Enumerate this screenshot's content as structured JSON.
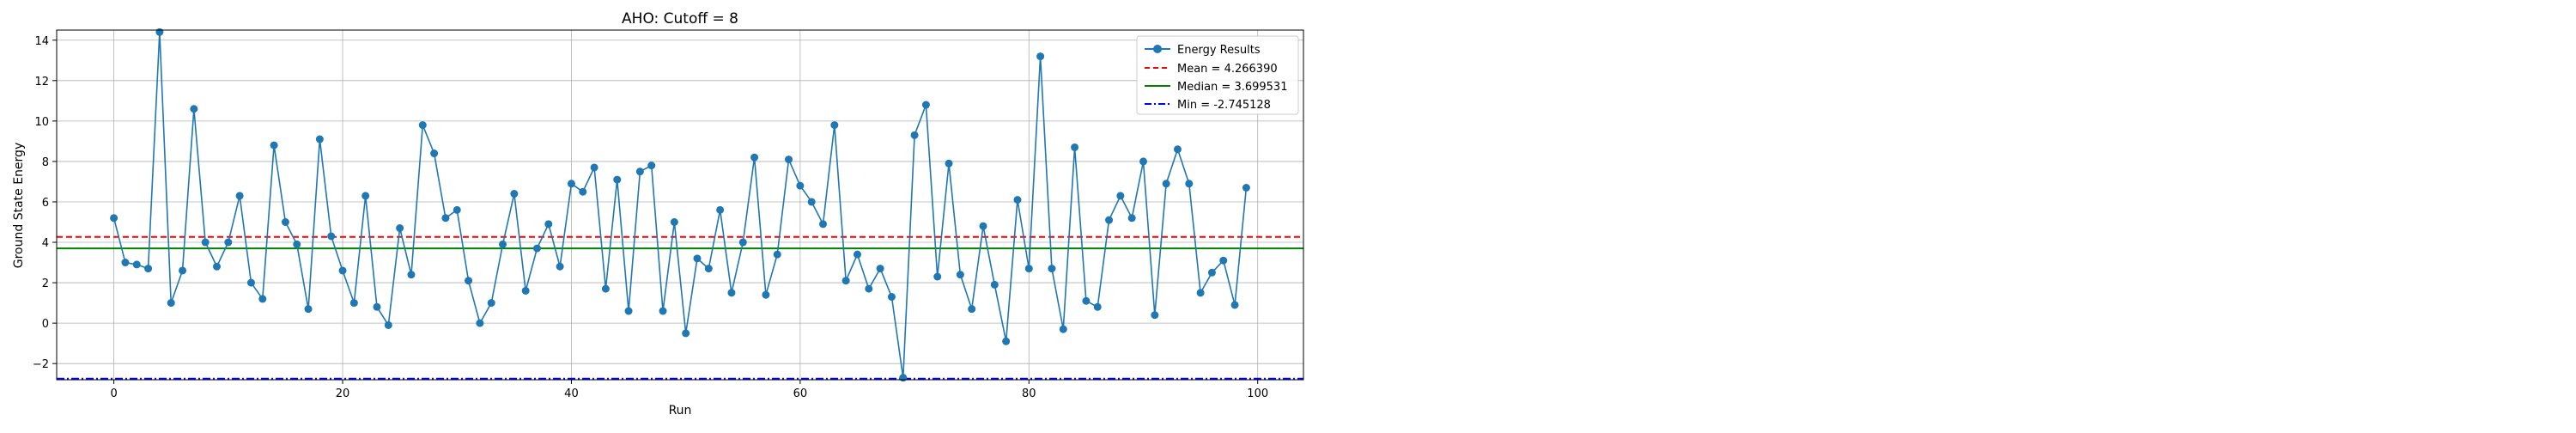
{
  "chart_data": {
    "type": "line",
    "title": "AHO: Cutoff = 8",
    "xlabel": "Run",
    "ylabel": "Ground State Energy",
    "xlim": [
      -5,
      104
    ],
    "ylim": [
      -2.8,
      14.5
    ],
    "xticks": [
      0,
      20,
      40,
      60,
      80,
      100
    ],
    "yticks": [
      -2,
      0,
      2,
      4,
      6,
      8,
      10,
      12,
      14
    ],
    "grid": true,
    "legend_position": "upper right",
    "series": [
      {
        "name": "Energy Results",
        "color": "#1f77b4",
        "marker": "circle",
        "x": [
          0,
          1,
          2,
          3,
          4,
          5,
          6,
          7,
          8,
          9,
          10,
          11,
          12,
          13,
          14,
          15,
          16,
          17,
          18,
          19,
          20,
          21,
          22,
          23,
          24,
          25,
          26,
          27,
          28,
          29,
          30,
          31,
          32,
          33,
          34,
          35,
          36,
          37,
          38,
          39,
          40,
          41,
          42,
          43,
          44,
          45,
          46,
          47,
          48,
          49,
          50,
          51,
          52,
          53,
          54,
          55,
          56,
          57,
          58,
          59,
          60,
          61,
          62,
          63,
          64,
          65,
          66,
          67,
          68,
          69,
          70,
          71,
          72,
          73,
          74,
          75,
          76,
          77,
          78,
          79,
          80,
          81,
          82,
          83,
          84,
          85,
          86,
          87,
          88,
          89,
          90,
          91,
          92,
          93,
          94,
          95,
          96,
          97,
          98,
          99
        ],
        "y": [
          5.2,
          3.0,
          2.9,
          2.7,
          14.4,
          1.0,
          2.6,
          10.6,
          4.0,
          2.8,
          4.0,
          6.3,
          2.0,
          1.2,
          8.8,
          5.0,
          3.9,
          0.7,
          9.1,
          4.3,
          2.6,
          1.0,
          6.3,
          0.8,
          -0.1,
          4.7,
          2.4,
          9.8,
          8.4,
          5.2,
          5.6,
          2.1,
          0.0,
          1.0,
          3.9,
          6.4,
          1.6,
          3.7,
          4.9,
          2.8,
          6.9,
          6.5,
          7.7,
          1.7,
          7.1,
          0.6,
          7.5,
          7.8,
          0.6,
          5.0,
          -0.5,
          3.2,
          2.7,
          5.6,
          1.5,
          4.0,
          8.2,
          1.4,
          3.4,
          8.1,
          6.8,
          6.0,
          4.9,
          9.8,
          2.1,
          3.4,
          1.7,
          2.7,
          1.3,
          -2.7,
          9.3,
          10.8,
          2.3,
          7.9,
          2.4,
          0.7,
          4.8,
          1.9,
          -0.9,
          6.1,
          2.7,
          13.2,
          2.7,
          -0.3,
          8.7,
          1.1,
          0.8,
          5.1,
          6.3,
          5.2,
          8.0,
          0.4,
          6.9,
          8.6,
          6.9,
          1.5,
          2.5,
          3.1,
          0.9,
          6.7
        ]
      }
    ],
    "reference_lines": [
      {
        "label": "Mean = 4.266390",
        "value": 4.26639,
        "color": "#ff0000",
        "style": "dashed"
      },
      {
        "label": "Median = 3.699531",
        "value": 3.699531,
        "color": "#008000",
        "style": "solid"
      },
      {
        "label": "Min = -2.745128",
        "value": -2.745128,
        "color": "#0000ff",
        "style": "dashdot"
      }
    ]
  }
}
